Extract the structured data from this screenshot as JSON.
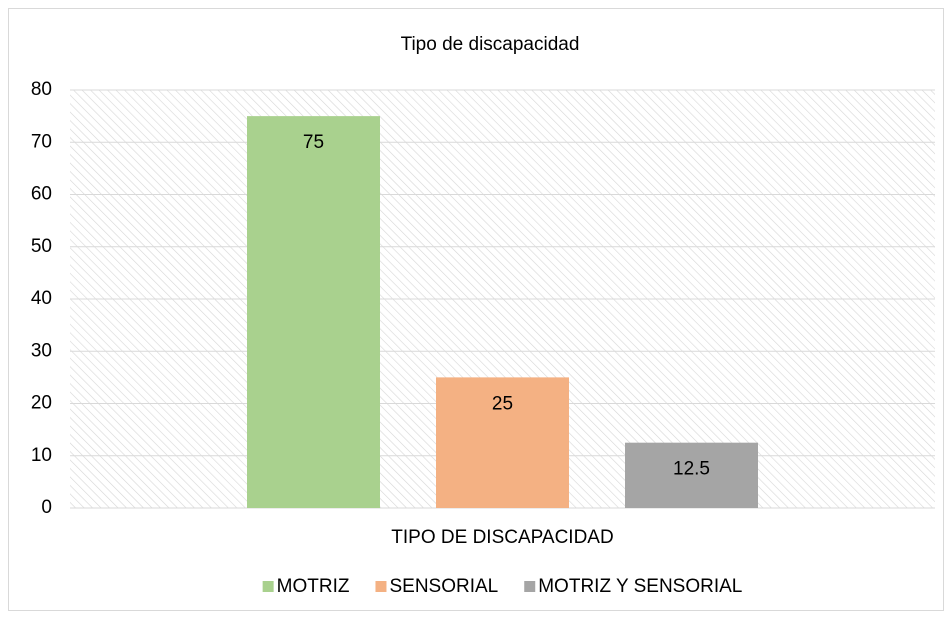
{
  "chart_data": {
    "type": "bar",
    "title": "Tipo de discapacidad",
    "categories": [
      "TIPO DE DISCAPACIDAD"
    ],
    "series": [
      {
        "name": "MOTRIZ",
        "color": "#a9d18e",
        "values": [
          75
        ]
      },
      {
        "name": "SENSORIAL",
        "color": "#f4b183",
        "values": [
          25
        ]
      },
      {
        "name": "MOTRIZ Y SENSORIAL",
        "color": "#a5a5a5",
        "values": [
          12.5
        ]
      }
    ],
    "ylim": [
      0,
      80
    ],
    "yticks": [
      0,
      10,
      20,
      30,
      40,
      50,
      60,
      70,
      80
    ],
    "grid": true,
    "legend": "bottom"
  }
}
